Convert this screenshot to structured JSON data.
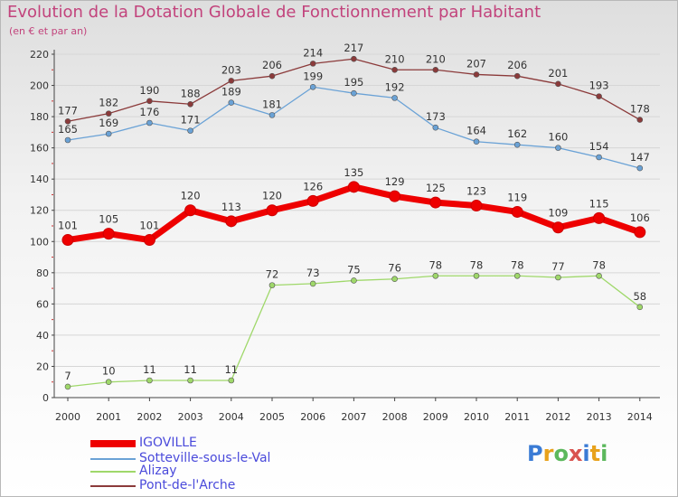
{
  "title": "Evolution de la Dotation Globale de Fonctionnement par Habitant",
  "subtitle": "(en € et par an)",
  "logo": {
    "text": "Proxiti"
  },
  "chart_data": {
    "type": "line",
    "title": "Evolution de la Dotation Globale de Fonctionnement par Habitant",
    "subtitle": "(en € et par an)",
    "xlabel": "",
    "ylabel": "",
    "x": [
      "2000",
      "2001",
      "2002",
      "2003",
      "2004",
      "2005",
      "2006",
      "2007",
      "2008",
      "2009",
      "2010",
      "2011",
      "2012",
      "2013",
      "2014"
    ],
    "ylim": [
      0,
      220
    ],
    "yticks": [
      0,
      20,
      40,
      60,
      80,
      100,
      120,
      140,
      160,
      180,
      200,
      220
    ],
    "grid": true,
    "legend_position": "bottom-left",
    "series": [
      {
        "name": "IGOVILLE",
        "color": "#ee0000",
        "values": [
          101,
          105,
          101,
          120,
          113,
          120,
          126,
          135,
          129,
          125,
          123,
          119,
          109,
          115,
          106
        ]
      },
      {
        "name": "Sotteville-sous-le-Val",
        "color": "#6aa2d6",
        "values": [
          165,
          169,
          176,
          171,
          189,
          181,
          199,
          195,
          192,
          173,
          164,
          162,
          160,
          154,
          147
        ]
      },
      {
        "name": "Alizay",
        "color": "#9fd86a",
        "values": [
          7,
          10,
          11,
          11,
          11,
          72,
          73,
          75,
          76,
          78,
          78,
          78,
          77,
          78,
          58
        ]
      },
      {
        "name": "Pont-de-l'Arche",
        "color": "#8b3a3a",
        "values": [
          177,
          182,
          190,
          188,
          203,
          206,
          214,
          217,
          210,
          210,
          207,
          206,
          201,
          193,
          178
        ]
      }
    ]
  }
}
